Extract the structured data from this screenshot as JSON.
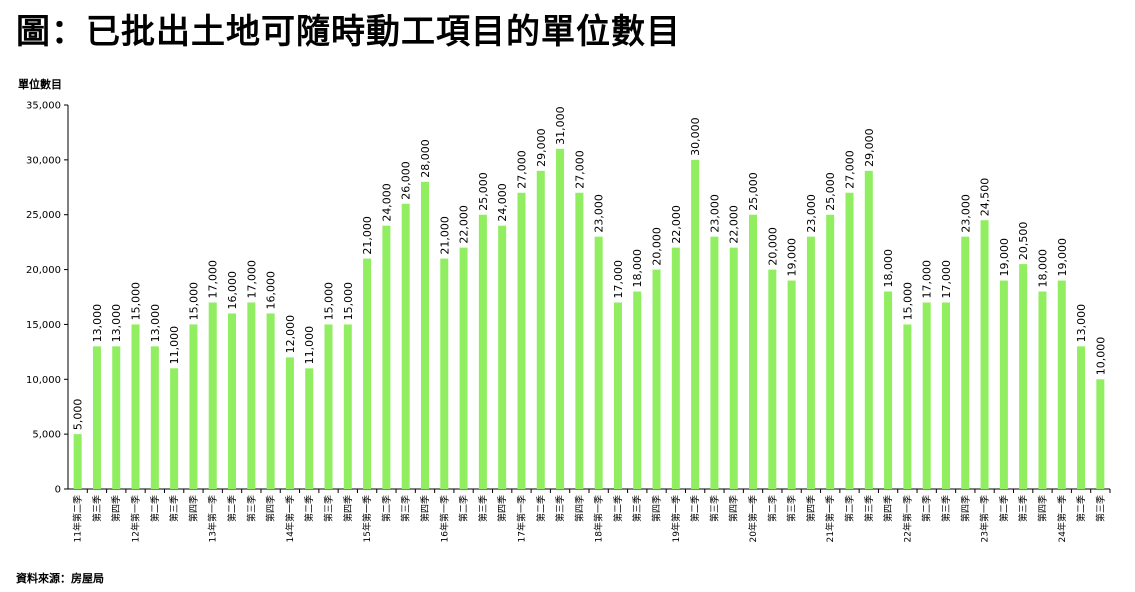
{
  "title": "圖：已批出土地可隨時動工項目的單位數目",
  "source": "資料來源：房屋局",
  "chart_data": {
    "type": "bar",
    "ylabel": "單位數目",
    "ylim": [
      0,
      35000
    ],
    "yticks": [
      "0",
      "5,000",
      "10,000",
      "15,000",
      "20,000",
      "25,000",
      "30,000",
      "35,000"
    ],
    "bar_color": "#90EE60",
    "categories": [
      "11年第二季",
      "第三季",
      "第四季",
      "12年第一季",
      "第二季",
      "第三季",
      "第四季",
      "13年第一季",
      "第二季",
      "第三季",
      "第四季",
      "14年第一季",
      "第二季",
      "第三季",
      "第四季",
      "15年第一季",
      "第二季",
      "第三季",
      "第四季",
      "16年第一季",
      "第二季",
      "第三季",
      "第四季",
      "17年第一季",
      "第二季",
      "第三季",
      "第四季",
      "18年第一季",
      "第二季",
      "第三季",
      "第四季",
      "19年第一季",
      "第二季",
      "第三季",
      "第四季",
      "20年第一季",
      "第二季",
      "第三季",
      "第四季",
      "21年第一季",
      "第二季",
      "第三季",
      "第四季",
      "22年第一季",
      "第二季",
      "第三季",
      "第四季",
      "23年第一季",
      "第二季",
      "第三季",
      "第四季",
      "24年第一季",
      "第二季",
      "第三季"
    ],
    "values": [
      5000,
      13000,
      13000,
      15000,
      13000,
      11000,
      15000,
      17000,
      16000,
      17000,
      16000,
      12000,
      11000,
      15000,
      15000,
      21000,
      24000,
      26000,
      28000,
      21000,
      22000,
      25000,
      24000,
      27000,
      29000,
      31000,
      27000,
      23000,
      17000,
      18000,
      20000,
      22000,
      30000,
      23000,
      22000,
      25000,
      20000,
      19000,
      23000,
      25000,
      27000,
      29000,
      18000,
      15000,
      17000,
      17000,
      23000,
      24500,
      19000,
      20500,
      18000,
      19000,
      13000,
      10000
    ],
    "value_labels": [
      "5,000",
      "13,000",
      "13,000",
      "15,000",
      "13,000",
      "11,000",
      "15,000",
      "17,000",
      "16,000",
      "17,000",
      "16,000",
      "12,000",
      "11,000",
      "15,000",
      "15,000",
      "21,000",
      "24,000",
      "26,000",
      "28,000",
      "21,000",
      "22,000",
      "25,000",
      "24,000",
      "27,000",
      "29,000",
      "31,000",
      "27,000",
      "23,000",
      "17,000",
      "18,000",
      "20,000",
      "22,000",
      "30,000",
      "23,000",
      "22,000",
      "25,000",
      "20,000",
      "19,000",
      "23,000",
      "25,000",
      "27,000",
      "29,000",
      "18,000",
      "15,000",
      "17,000",
      "17,000",
      "23,000",
      "24,500",
      "19,000",
      "20,500",
      "18,000",
      "19,000",
      "13,000",
      "10,000"
    ]
  }
}
